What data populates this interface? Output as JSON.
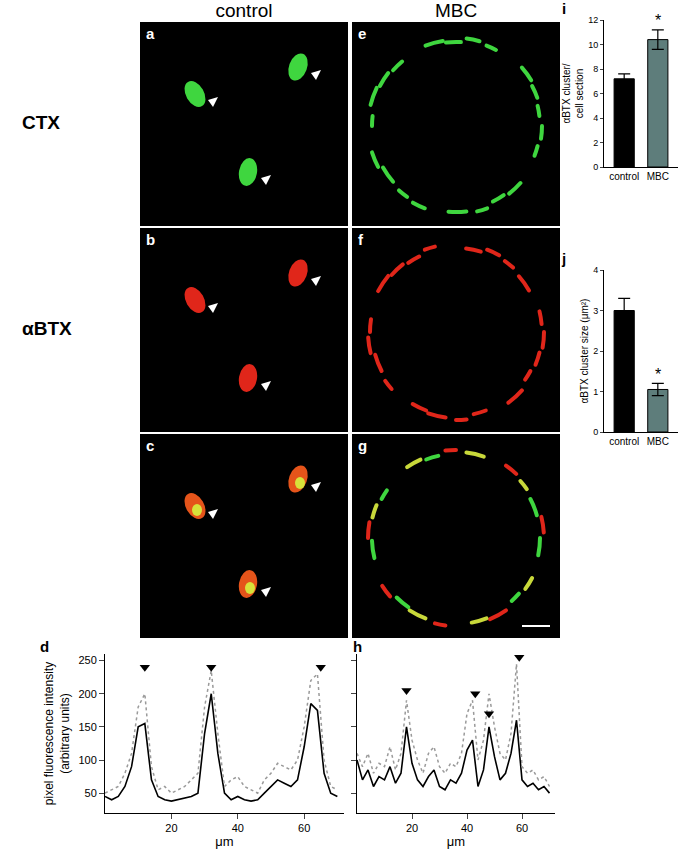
{
  "panels": {
    "columns": [
      "control",
      "MBC"
    ],
    "rows": [
      "CTX",
      "αBTX"
    ],
    "letters": [
      [
        "a",
        "b",
        "c"
      ],
      [
        "e",
        "f",
        "g"
      ]
    ]
  },
  "chart_data": [
    {
      "type": "line",
      "panel": "d",
      "ylabel": [
        "pixel fluorescence intensity",
        "(arbitrary units)"
      ],
      "xlabel": "μm",
      "x": [
        0,
        2,
        4,
        6,
        8,
        10,
        12,
        14,
        16,
        18,
        20,
        22,
        24,
        26,
        28,
        30,
        32,
        34,
        36,
        38,
        40,
        42,
        44,
        46,
        48,
        50,
        52,
        54,
        56,
        58,
        60,
        62,
        64,
        66,
        68,
        70
      ],
      "series": [
        {
          "color": "#000000",
          "line_style": "solid",
          "values": [
            45,
            40,
            45,
            60,
            90,
            150,
            155,
            70,
            45,
            40,
            38,
            40,
            42,
            45,
            50,
            140,
            200,
            110,
            50,
            40,
            45,
            40,
            38,
            40,
            50,
            60,
            70,
            65,
            60,
            70,
            120,
            185,
            175,
            80,
            50,
            45
          ]
        },
        {
          "color": "#9a9a9a",
          "line_style": "dotted",
          "values": [
            50,
            55,
            60,
            80,
            110,
            180,
            200,
            90,
            55,
            60,
            50,
            55,
            60,
            70,
            80,
            180,
            235,
            140,
            60,
            70,
            75,
            60,
            55,
            50,
            70,
            80,
            95,
            90,
            85,
            100,
            150,
            220,
            230,
            100,
            60,
            55
          ]
        }
      ],
      "arrows": {
        "x": [
          12,
          32,
          65
        ],
        "y": [
          240,
          240,
          240
        ],
        "marker": "triangle-down"
      },
      "xlim": [
        0,
        72
      ],
      "ylim": [
        20,
        260
      ],
      "xticks": [
        20,
        40,
        60
      ],
      "yticks": [
        50,
        100,
        150,
        200,
        250
      ]
    },
    {
      "type": "line",
      "panel": "h",
      "xlabel": "μm",
      "x": [
        0,
        2,
        4,
        6,
        8,
        10,
        12,
        14,
        16,
        18,
        20,
        22,
        24,
        26,
        28,
        30,
        32,
        34,
        36,
        38,
        40,
        42,
        44,
        46,
        48,
        50,
        52,
        54,
        56,
        58,
        60,
        62,
        64,
        66,
        68,
        70
      ],
      "series": [
        {
          "color": "#000000",
          "line_style": "solid",
          "values": [
            100,
            70,
            85,
            60,
            75,
            70,
            90,
            65,
            80,
            150,
            95,
            70,
            60,
            75,
            85,
            60,
            55,
            70,
            65,
            80,
            115,
            130,
            60,
            85,
            150,
            105,
            70,
            80,
            110,
            160,
            70,
            60,
            65,
            55,
            60,
            50
          ]
        },
        {
          "color": "#9a9a9a",
          "line_style": "dotted",
          "values": [
            110,
            90,
            110,
            80,
            95,
            90,
            120,
            85,
            110,
            190,
            130,
            100,
            80,
            110,
            120,
            90,
            80,
            95,
            90,
            110,
            170,
            190,
            100,
            130,
            200,
            150,
            110,
            100,
            140,
            245,
            90,
            80,
            85,
            70,
            75,
            60
          ]
        }
      ],
      "arrows": {
        "x": [
          18,
          43,
          48,
          59
        ],
        "y": [
          205,
          200,
          170,
          255
        ],
        "marker": "triangle-down"
      },
      "xlim": [
        0,
        72
      ],
      "ylim": [
        20,
        260
      ],
      "xticks": [
        20,
        40,
        60
      ],
      "yticks": [
        50,
        100,
        150,
        200,
        250
      ],
      "tick_labels": "x"
    },
    {
      "type": "bar",
      "panel": "i",
      "ylabel": [
        "αBTX cluster/",
        "cell section"
      ],
      "categories": [
        "control",
        "MBC"
      ],
      "values": [
        7.2,
        10.4
      ],
      "errors": [
        0.4,
        0.8
      ],
      "colors": [
        "#000000",
        "#5e7d7b"
      ],
      "significance": {
        "category": "MBC",
        "text": "*"
      },
      "ylim": [
        0,
        12
      ],
      "yticks": [
        0,
        2,
        4,
        6,
        8,
        10,
        12
      ]
    },
    {
      "type": "bar",
      "panel": "j",
      "ylabel": [
        "αBTX cluster size (μm²)"
      ],
      "categories": [
        "control",
        "MBC"
      ],
      "values": [
        3.0,
        1.05
      ],
      "errors": [
        0.3,
        0.15
      ],
      "colors": [
        "#000000",
        "#5e7d7b"
      ],
      "significance": {
        "category": "MBC",
        "text": "*"
      },
      "ylim": [
        0,
        4
      ],
      "yticks": [
        0,
        1,
        2,
        3,
        4
      ]
    }
  ]
}
